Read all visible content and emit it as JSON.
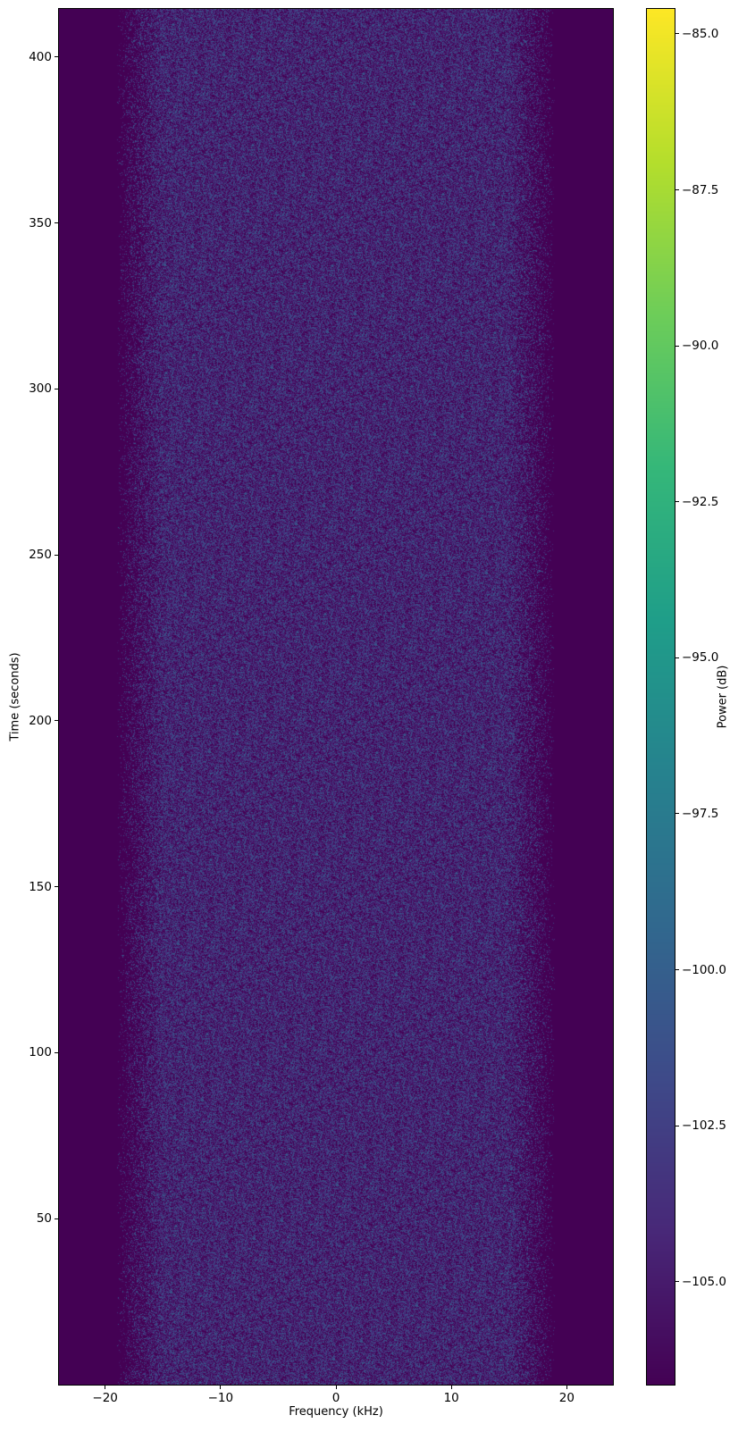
{
  "chart_data": {
    "type": "heatmap",
    "title": "",
    "xlabel": "Frequency (kHz)",
    "ylabel": "Time (seconds)",
    "xlim": [
      -24,
      24
    ],
    "ylim": [
      0,
      414.5
    ],
    "xticks": [
      -20,
      -10,
      0,
      10,
      20
    ],
    "xtick_labels": [
      "−20",
      "−10",
      "0",
      "10",
      "20"
    ],
    "yticks": [
      50,
      100,
      150,
      200,
      250,
      300,
      350,
      400
    ],
    "ytick_labels": [
      "50",
      "100",
      "150",
      "200",
      "250",
      "300",
      "350",
      "400"
    ],
    "colormap": "viridis",
    "colorbar": {
      "label": "Power (dB)",
      "vmin": -106.65,
      "vmax": -84.6,
      "ticks": [
        -85.0,
        -87.5,
        -90.0,
        -92.5,
        -95.0,
        -97.5,
        -100.0,
        -102.5,
        -105.0
      ],
      "tick_labels": [
        "−85.0",
        "−87.5",
        "−90.0",
        "−92.5",
        "−95.0",
        "−97.5",
        "−100.0",
        "−102.5",
        "−105.0"
      ]
    },
    "description_of_content": "",
    "signal_band_kHz": [
      -19,
      19
    ],
    "noise_floor_dB": -106.65,
    "typical_in_band_power_dB": [
      -106.6,
      -101
    ]
  }
}
